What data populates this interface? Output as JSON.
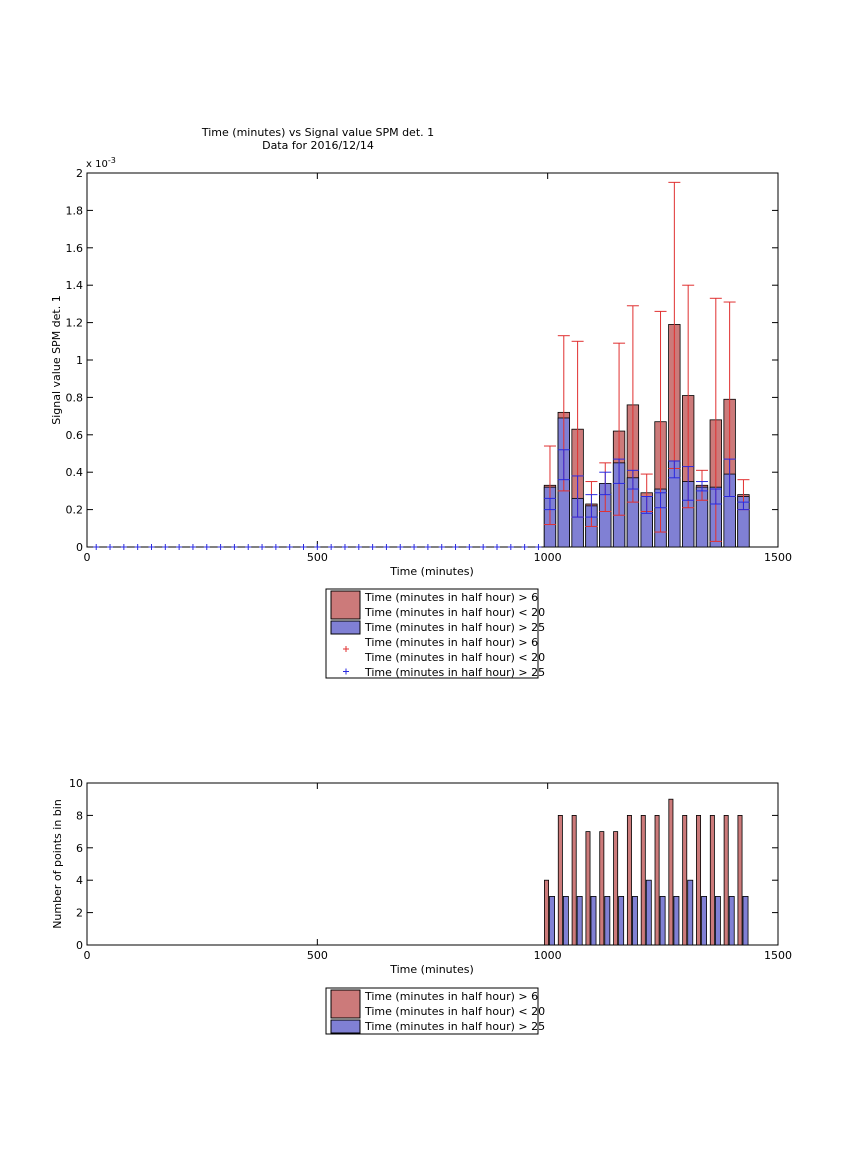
{
  "chart_data": [
    {
      "type": "bar",
      "title": "Time (minutes) vs Signal value SPM det. 1",
      "subtitle": "Data for 2016/12/14",
      "xlabel": "Time (minutes)",
      "ylabel": "Signal value SPM det. 1",
      "xlim": [
        0,
        1500
      ],
      "ylim": [
        0,
        0.002
      ],
      "exponent_label": "x 10",
      "exponent_power": "-3",
      "x_ticks": [
        "0",
        "500",
        "1000",
        "1500"
      ],
      "y_ticks": [
        "0",
        "0.2",
        "0.4",
        "0.6",
        "0.8",
        "1",
        "1.2",
        "1.4",
        "1.6",
        "1.8",
        "2"
      ],
      "grid": false,
      "legend_position": "below",
      "colors": {
        "red_bar": "#cc7a7a",
        "blue_bar": "#8080d4",
        "red_err": "#e03030",
        "blue_err": "#2a2ae0"
      },
      "x": [
        1005,
        1035,
        1065,
        1095,
        1125,
        1155,
        1185,
        1215,
        1245,
        1275,
        1305,
        1335,
        1365,
        1395,
        1425
      ],
      "series": [
        {
          "name": "Time (minutes in half hour) > 6\nTime (minutes in half hour) < 20",
          "values": [
            0.00033,
            0.00072,
            0.00063,
            0.00023,
            0.00029,
            0.00062,
            0.00076,
            0.00029,
            0.00067,
            0.00119,
            0.00081,
            0.00033,
            0.00068,
            0.00079,
            0.00028
          ],
          "err_low": [
            0.00012,
            0.0003,
            0.00016,
            0.00011,
            0.00019,
            0.00017,
            0.00024,
            0.00019,
            8e-05,
            0.00042,
            0.00021,
            0.00025,
            3e-05,
            0.00027,
            0.0002
          ],
          "err_high": [
            0.00054,
            0.00113,
            0.0011,
            0.00035,
            0.00045,
            0.00109,
            0.00129,
            0.00039,
            0.00126,
            0.00195,
            0.0014,
            0.00041,
            0.00133,
            0.00131,
            0.00036
          ]
        },
        {
          "name": "Time (minutes in half hour) > 25",
          "values": [
            0.00032,
            0.00069,
            0.00026,
            0.00022,
            0.00034,
            0.00045,
            0.00037,
            0.00027,
            0.00031,
            0.00046,
            0.00035,
            0.00032,
            0.00032,
            0.00039,
            0.00027
          ],
          "err_low": [
            0.0002,
            0.00036,
            0.00016,
            0.00016,
            0.00028,
            0.00034,
            0.00031,
            0.00018,
            0.00021,
            0.00037,
            0.00025,
            0.0003,
            0.00023,
            0.00027,
            0.0002
          ],
          "err_high": [
            0.00026,
            0.00052,
            0.00038,
            0.00028,
            0.0004,
            0.00047,
            0.00041,
            0.00027,
            0.00029,
            0.00046,
            0.00043,
            0.00035,
            0.00031,
            0.00047,
            0.00024
          ]
        }
      ],
      "zero_markers_x": [
        20,
        50,
        80,
        110,
        140,
        170,
        200,
        230,
        260,
        290,
        320,
        350,
        380,
        410,
        440,
        470,
        500,
        530,
        560,
        590,
        620,
        650,
        680,
        710,
        740,
        770,
        800,
        830,
        860,
        890,
        920,
        950,
        980
      ],
      "legend": [
        {
          "kind": "swatch",
          "color": "red_bar",
          "lines": [
            "Time (minutes in half hour) > 6",
            "Time (minutes in half hour) < 20"
          ]
        },
        {
          "kind": "swatch",
          "color": "blue_bar",
          "lines": [
            "Time (minutes in half hour) > 25"
          ]
        },
        {
          "kind": "marker",
          "color": "red_err",
          "lines": [
            "Time (minutes in half hour) > 6",
            "Time (minutes in half hour) < 20"
          ]
        },
        {
          "kind": "marker",
          "color": "blue_err",
          "lines": [
            "Time (minutes in half hour) > 25"
          ]
        }
      ]
    },
    {
      "type": "bar",
      "xlabel": "Time (minutes)",
      "ylabel": "Number of points in bin",
      "xlim": [
        0,
        1500
      ],
      "ylim": [
        0,
        10
      ],
      "x_ticks": [
        "0",
        "500",
        "1000",
        "1500"
      ],
      "y_ticks": [
        "0",
        "2",
        "4",
        "6",
        "8",
        "10"
      ],
      "grid": false,
      "legend_position": "below",
      "colors": {
        "red_bar": "#cc7a7a",
        "blue_bar": "#8080d4"
      },
      "x": [
        1005,
        1035,
        1065,
        1095,
        1125,
        1155,
        1185,
        1215,
        1245,
        1275,
        1305,
        1335,
        1365,
        1395,
        1425
      ],
      "series": [
        {
          "name": "Time (minutes in half hour) > 6\nTime (minutes in half hour) < 20",
          "values": [
            4,
            8,
            8,
            7,
            7,
            7,
            8,
            8,
            8,
            9,
            8,
            8,
            8,
            8,
            8
          ]
        },
        {
          "name": "Time (minutes in half hour) > 25",
          "values": [
            3,
            3,
            3,
            3,
            3,
            3,
            3,
            4,
            3,
            3,
            4,
            3,
            3,
            3,
            3
          ]
        }
      ],
      "legend": [
        {
          "kind": "swatch",
          "color": "red_bar",
          "lines": [
            "Time (minutes in half hour) > 6",
            "Time (minutes in half hour) < 20"
          ]
        },
        {
          "kind": "swatch",
          "color": "blue_bar",
          "lines": [
            "Time (minutes in half hour) > 25"
          ]
        }
      ]
    }
  ]
}
